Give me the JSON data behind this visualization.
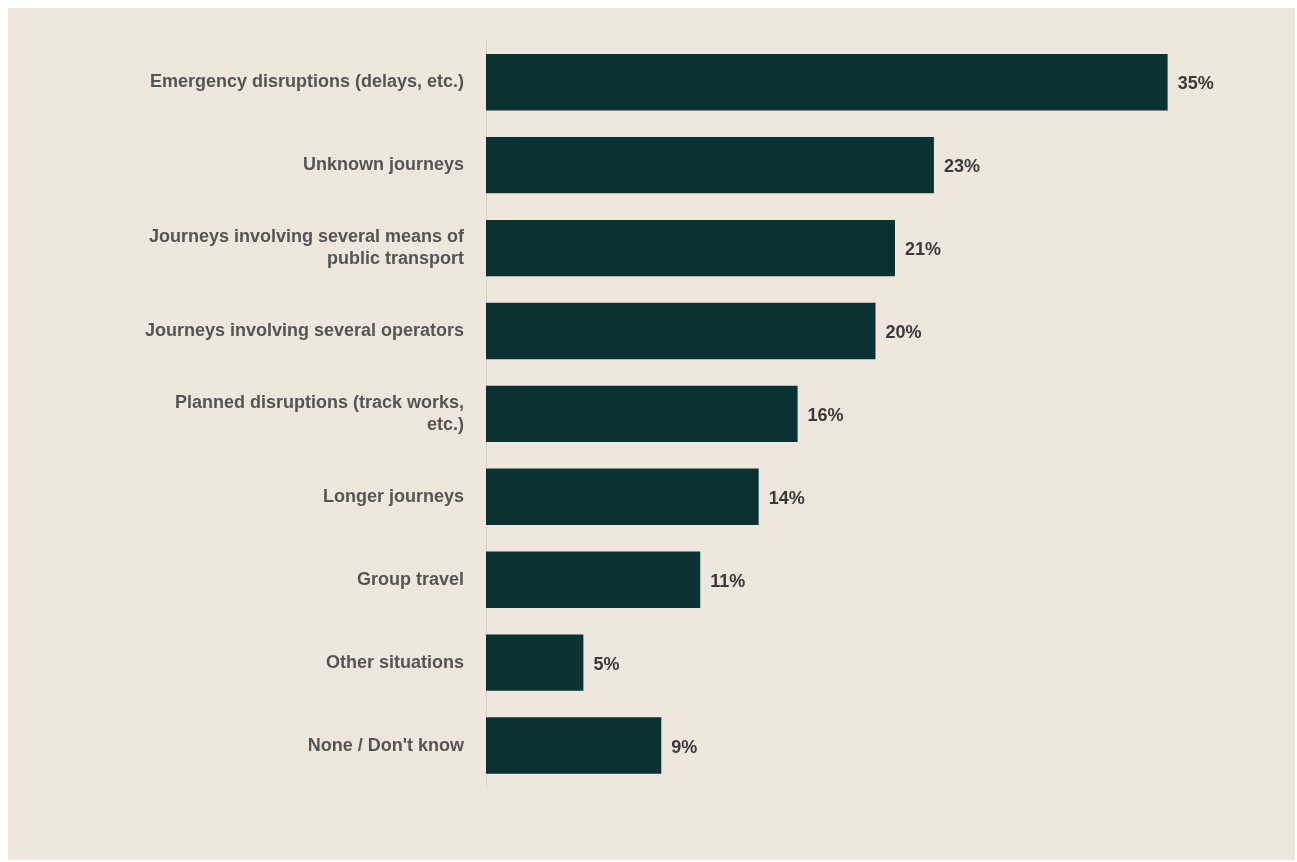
{
  "chart_data": {
    "type": "bar",
    "orientation": "horizontal",
    "categories": [
      "Emergency disruptions (delays, etc.)",
      "Unknown journeys",
      "Journeys involving several means of public transport",
      "Journeys involving several operators",
      "Planned disruptions (track works, etc.)",
      "Longer journeys",
      "Group travel",
      "Other situations",
      "None / Don't know"
    ],
    "values": [
      35,
      23,
      21,
      20,
      16,
      14,
      11,
      5,
      9
    ],
    "value_labels": [
      "35%",
      "23%",
      "21%",
      "20%",
      "16%",
      "14%",
      "11%",
      "5%",
      "9%"
    ],
    "color": "#0b3233"
  }
}
